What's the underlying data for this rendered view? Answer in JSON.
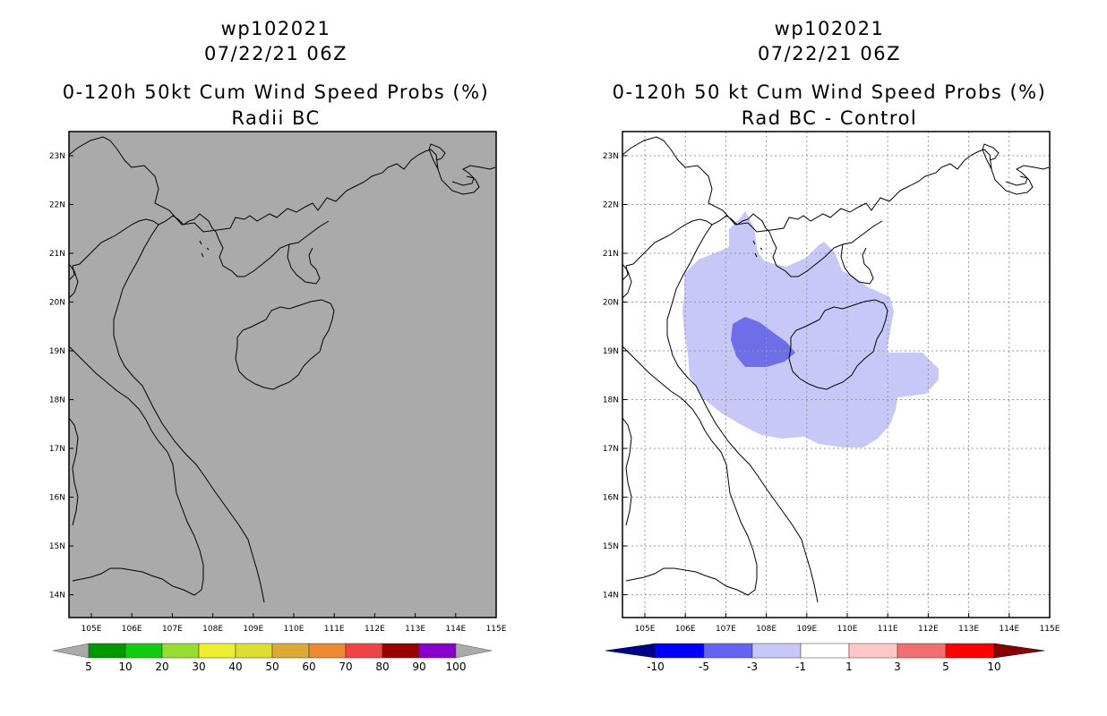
{
  "left_panel": {
    "title1": "wp102021",
    "title2": "07/22/21 06Z",
    "title3": "0-120h 50kt Cum Wind Speed Probs (%)",
    "title4": "Radii BC",
    "background_color": "#aaaaaa",
    "colorbar": {
      "labels": [
        "5",
        "10",
        "20",
        "30",
        "40",
        "50",
        "60",
        "70",
        "80",
        "90",
        "100"
      ],
      "colors": [
        "#009900",
        "#11cc11",
        "#99dd33",
        "#eeee33",
        "#dddd33",
        "#ddaa33",
        "#ee8833",
        "#ee4444",
        "#990000",
        "#8800cc"
      ],
      "arrow_color": "#aaaaaa"
    }
  },
  "right_panel": {
    "title1": "wp102021",
    "title2": "07/22/21 06Z",
    "title3": "0-120h 50 kt Cum Wind Speed Probs (%)",
    "title4": "Rad BC - Control",
    "light_fill_color": "#c8c8f8",
    "dark_fill_color": "#6e6ee8",
    "colorbar": {
      "labels": [
        "-10",
        "-5",
        "-3",
        "-1",
        "1",
        "3",
        "5",
        "10"
      ],
      "colors": [
        "#0000ff",
        "#6464f0",
        "#c8c8f8",
        "#ffffff",
        "#ffc8c8",
        "#f07070",
        "#ff0000"
      ],
      "left_arrow_color": "#000088",
      "right_arrow_color": "#880000"
    }
  },
  "lat_labels": [
    "23N",
    "22N",
    "21N",
    "20N",
    "19N",
    "18N",
    "17N",
    "16N",
    "15N",
    "14N"
  ],
  "lon_labels": [
    "105E",
    "106E",
    "107E",
    "108E",
    "109E",
    "110E",
    "111E",
    "112E",
    "113E",
    "114E",
    "115E"
  ]
}
